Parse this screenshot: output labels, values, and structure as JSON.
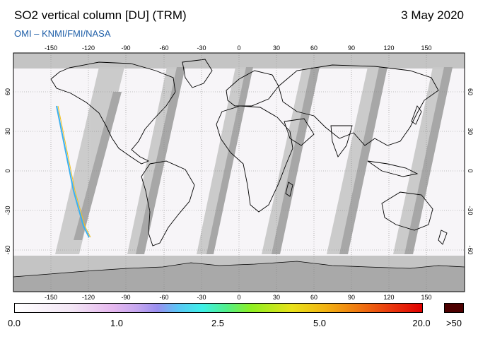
{
  "header": {
    "title": "SO2 vertical column [DU] (TRM)",
    "date": "3 May 2020",
    "credit": "OMI  –  KNMI/FMI/NASA"
  },
  "map": {
    "lon_ticks": [
      "-150",
      "-120",
      "-90",
      "-60",
      "-30",
      "0",
      "30",
      "60",
      "90",
      "120",
      "150"
    ],
    "lat_ticks_left": [
      "60",
      "30",
      "0",
      "-30",
      "-60"
    ],
    "lat_ticks_right": [
      "60",
      "30",
      "0",
      "-30",
      "-60"
    ],
    "colors": {
      "land_outline": "#000000",
      "no_data": "#c9c9c9",
      "polar_no_data": "#bdbdbd",
      "orbit_gap": "#a8a8a8"
    }
  },
  "colorbar": {
    "ticks": [
      "0.0",
      "1.0",
      "2.5",
      "5.0",
      "20.0",
      ">50"
    ]
  }
}
